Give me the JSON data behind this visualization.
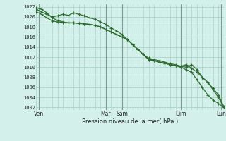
{
  "title": "Pression niveau de la mer( hPa )",
  "bg_color": "#d4f0eb",
  "grid_color": "#aad4cc",
  "line_color": "#2d6e2d",
  "xlim": [
    0,
    35
  ],
  "ylim": [
    1001.5,
    1022.5
  ],
  "yticks": [
    1002,
    1004,
    1006,
    1008,
    1010,
    1012,
    1014,
    1016,
    1018,
    1020,
    1022
  ],
  "xtick_labels": [
    "Ven",
    "Mar",
    "Sam",
    "Dim",
    "Lun"
  ],
  "xtick_positions": [
    0.5,
    13,
    16,
    27,
    34.5
  ],
  "vline_positions": [
    0.5,
    13,
    16,
    27,
    34.5
  ],
  "series1_x": [
    0,
    1,
    2,
    3,
    4,
    5,
    6,
    7,
    8,
    9,
    10,
    11,
    12,
    13,
    14,
    15,
    16,
    17,
    18,
    19,
    20,
    21,
    22,
    23,
    24,
    25,
    26,
    27,
    28,
    29,
    30,
    31,
    32,
    33,
    34,
    35
  ],
  "series1_y": [
    1021.5,
    1021.0,
    1020.5,
    1020.0,
    1020.2,
    1020.5,
    1020.3,
    1020.8,
    1020.5,
    1020.2,
    1019.8,
    1019.5,
    1019.0,
    1018.5,
    1017.8,
    1017.2,
    1016.5,
    1015.5,
    1014.5,
    1013.5,
    1012.5,
    1011.5,
    1011.5,
    1011.3,
    1011.0,
    1010.7,
    1010.5,
    1010.2,
    1010.0,
    1010.5,
    1009.5,
    1008.0,
    1007.0,
    1005.5,
    1004.0,
    1002.0
  ],
  "series2_x": [
    0,
    1,
    2,
    3,
    4,
    5,
    6,
    7,
    8,
    9,
    10,
    11,
    12,
    13,
    14,
    15,
    16,
    17,
    18,
    19,
    20,
    21,
    22,
    23,
    24,
    25,
    26,
    27,
    28,
    29,
    30,
    31,
    32,
    33,
    34,
    35
  ],
  "series2_y": [
    1021.8,
    1021.5,
    1020.8,
    1019.8,
    1019.3,
    1019.0,
    1018.8,
    1018.8,
    1018.7,
    1018.6,
    1018.5,
    1018.3,
    1018.0,
    1017.5,
    1017.0,
    1016.5,
    1016.0,
    1015.5,
    1014.5,
    1013.5,
    1012.5,
    1011.5,
    1011.3,
    1011.0,
    1010.8,
    1010.5,
    1010.3,
    1010.0,
    1009.5,
    1009.0,
    1007.5,
    1006.0,
    1004.5,
    1003.5,
    1002.8,
    1002.0
  ],
  "series3_x": [
    0,
    1,
    2,
    3,
    4,
    5,
    6,
    7,
    8,
    9,
    10,
    11,
    12,
    13,
    14,
    15,
    16,
    17,
    18,
    19,
    20,
    21,
    22,
    23,
    24,
    25,
    26,
    27,
    28,
    29,
    30,
    31,
    32,
    33,
    34,
    35
  ],
  "series3_y": [
    1021.0,
    1020.5,
    1019.8,
    1019.2,
    1019.0,
    1018.9,
    1018.8,
    1018.8,
    1018.7,
    1018.6,
    1018.5,
    1018.3,
    1018.0,
    1017.5,
    1017.0,
    1016.5,
    1016.0,
    1015.5,
    1014.5,
    1013.5,
    1012.5,
    1011.8,
    1011.3,
    1011.0,
    1010.8,
    1010.5,
    1010.3,
    1010.2,
    1010.5,
    1009.8,
    1009.0,
    1008.0,
    1007.0,
    1005.8,
    1004.5,
    1002.2
  ]
}
